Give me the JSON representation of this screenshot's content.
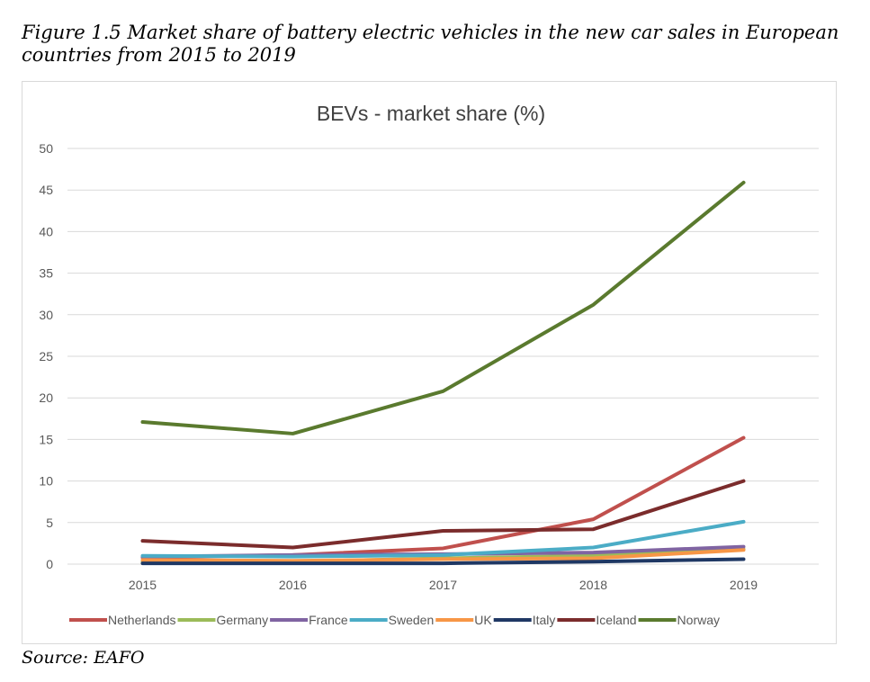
{
  "caption": "Figure 1.5 Market share of battery electric vehicles in the new car sales in European countries from 2015 to 2019",
  "source": "Source: EAFO",
  "chart_data": {
    "type": "line",
    "title": "BEVs - market share (%)",
    "xlabel": "",
    "ylabel": "",
    "x": [
      "2015",
      "2016",
      "2017",
      "2018",
      "2019"
    ],
    "ylim": [
      0,
      50
    ],
    "yticks": [
      0,
      5,
      10,
      15,
      20,
      25,
      30,
      35,
      40,
      45,
      50
    ],
    "grid": true,
    "legend_position": "bottom",
    "series": [
      {
        "name": "Netherlands",
        "color": "#c0504d",
        "values": [
          0.8,
          1.1,
          1.9,
          5.4,
          15.2
        ]
      },
      {
        "name": "Germany",
        "color": "#9bbb59",
        "values": [
          0.3,
          0.3,
          0.7,
          1.0,
          1.8
        ]
      },
      {
        "name": "France",
        "color": "#8064a2",
        "values": [
          0.9,
          1.1,
          1.2,
          1.4,
          2.1
        ]
      },
      {
        "name": "Sweden",
        "color": "#4bacc6",
        "values": [
          1.0,
          0.9,
          1.1,
          2.0,
          5.1
        ]
      },
      {
        "name": "UK",
        "color": "#f79646",
        "values": [
          0.5,
          0.4,
          0.6,
          0.7,
          1.7
        ]
      },
      {
        "name": "Italy",
        "color": "#1f3864",
        "values": [
          0.1,
          0.1,
          0.1,
          0.3,
          0.6
        ]
      },
      {
        "name": "Iceland",
        "color": "#7b2c2c",
        "values": [
          2.8,
          2.0,
          4.0,
          4.2,
          10.0
        ]
      },
      {
        "name": "Norway",
        "color": "#5a7a2e",
        "values": [
          17.1,
          15.7,
          20.8,
          31.2,
          45.9
        ]
      }
    ]
  }
}
